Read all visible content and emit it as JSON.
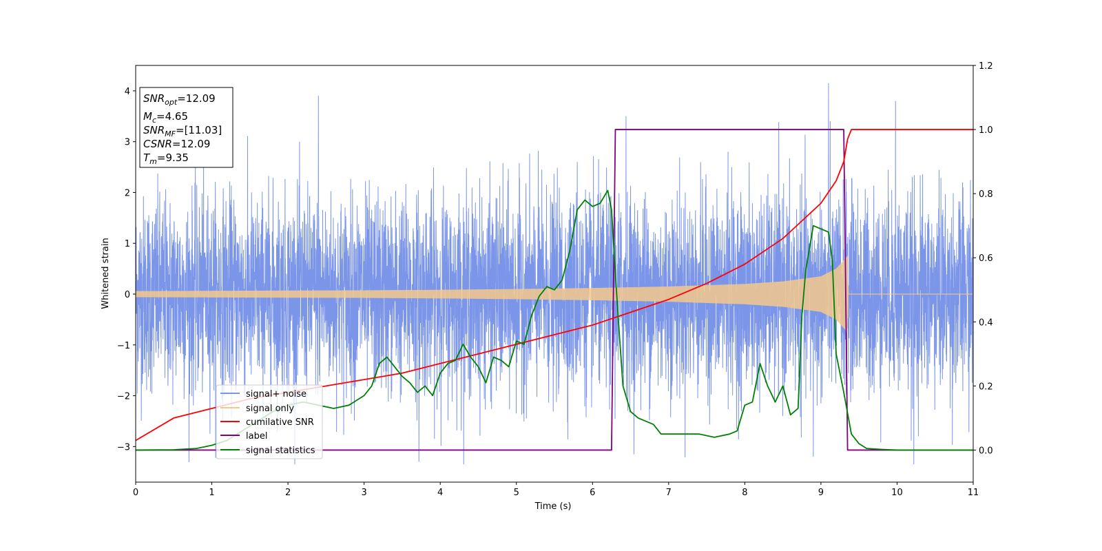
{
  "chart_data": {
    "type": "line",
    "xlabel": "Time (s)",
    "ylabel": "Whitened strain",
    "xlim": [
      0,
      11
    ],
    "ylim": [
      -3.7,
      4.5
    ],
    "y2lim": [
      -0.1,
      1.2
    ],
    "xticks": [
      "0",
      "1",
      "2",
      "3",
      "4",
      "5",
      "6",
      "7",
      "8",
      "9",
      "10",
      "11"
    ],
    "yticks": [
      -3,
      -2,
      -1,
      0,
      1,
      2,
      3,
      4
    ],
    "ytick_labels": [
      "−3",
      "−2",
      "−1",
      "0",
      "1",
      "2",
      "3",
      "4"
    ],
    "y2ticks": [
      "0.0",
      "0.2",
      "0.4",
      "0.6",
      "0.8",
      "1.0",
      "1.2"
    ],
    "grid": false,
    "legend_position": "lower-left",
    "annotations": {
      "snr_opt": {
        "sym": "SNR",
        "sub": "opt",
        "value": "=12.09"
      },
      "mc": {
        "sym": "M",
        "sub": "c",
        "value": "=4.65"
      },
      "snr_mf": {
        "sym": "SNR",
        "sub": "MF",
        "value": "=[11.03]"
      },
      "csnr": {
        "sym": "CSNR",
        "value": "=12.09"
      },
      "tm": {
        "sym": "T",
        "sub": "m",
        "value": "=9.35"
      }
    },
    "series": [
      {
        "name": "signal+ noise",
        "axis": "left",
        "color": "#7b95e8",
        "description_values": {
          "noise_sigma": 1.0,
          "typical_peak": 2.5,
          "max_peak": 4.15
        }
      },
      {
        "name": "signal only",
        "axis": "left",
        "color": "#f5c98c",
        "envelope_x": [
          0,
          1,
          2,
          3,
          4,
          5,
          6,
          7,
          8,
          8.5,
          9,
          9.2,
          9.35,
          9.36,
          11
        ],
        "envelope_y": [
          0.06,
          0.065,
          0.07,
          0.075,
          0.085,
          0.1,
          0.12,
          0.15,
          0.2,
          0.25,
          0.35,
          0.5,
          0.75,
          0.0,
          0.0
        ]
      },
      {
        "name": "cumilative SNR",
        "axis": "right",
        "color": "#ff0000",
        "x": [
          0,
          0.5,
          1,
          1.5,
          2,
          2.5,
          3,
          3.5,
          4,
          4.5,
          5,
          5.5,
          6,
          6.5,
          7,
          7.5,
          8,
          8.5,
          9,
          9.2,
          9.3,
          9.35,
          9.4,
          11
        ],
        "y": [
          0.03,
          0.1,
          0.13,
          0.16,
          0.18,
          0.2,
          0.22,
          0.24,
          0.27,
          0.3,
          0.33,
          0.36,
          0.39,
          0.43,
          0.47,
          0.52,
          0.58,
          0.66,
          0.77,
          0.84,
          0.9,
          0.97,
          1.0,
          1.0
        ]
      },
      {
        "name": "label",
        "axis": "right",
        "color": "#800080",
        "x": [
          0,
          6.25,
          6.3,
          9.3,
          9.35,
          11
        ],
        "y": [
          0,
          0,
          1,
          1,
          0,
          0
        ]
      },
      {
        "name": "signal statistics",
        "axis": "right",
        "color": "#008000",
        "x": [
          0,
          0.5,
          0.8,
          1.0,
          1.2,
          1.4,
          1.6,
          1.8,
          2.0,
          2.2,
          2.4,
          2.6,
          2.8,
          3.0,
          3.1,
          3.2,
          3.3,
          3.4,
          3.5,
          3.6,
          3.7,
          3.8,
          3.9,
          4.0,
          4.1,
          4.2,
          4.3,
          4.4,
          4.5,
          4.6,
          4.7,
          4.8,
          4.9,
          5.0,
          5.1,
          5.2,
          5.3,
          5.4,
          5.5,
          5.6,
          5.7,
          5.8,
          5.9,
          6.0,
          6.1,
          6.2,
          6.25,
          6.3,
          6.35,
          6.4,
          6.5,
          6.6,
          6.7,
          6.8,
          6.9,
          7.0,
          7.2,
          7.4,
          7.6,
          7.8,
          7.9,
          8.0,
          8.1,
          8.2,
          8.3,
          8.4,
          8.5,
          8.6,
          8.7,
          8.75,
          8.8,
          8.9,
          9.0,
          9.1,
          9.15,
          9.2,
          9.3,
          9.4,
          9.5,
          9.6,
          9.8,
          10.0,
          11.0
        ],
        "y": [
          0,
          0.001,
          0.005,
          0.015,
          0.03,
          0.06,
          0.09,
          0.12,
          0.14,
          0.15,
          0.14,
          0.13,
          0.14,
          0.17,
          0.2,
          0.27,
          0.29,
          0.26,
          0.23,
          0.21,
          0.18,
          0.2,
          0.17,
          0.24,
          0.27,
          0.28,
          0.33,
          0.29,
          0.26,
          0.21,
          0.29,
          0.28,
          0.26,
          0.34,
          0.33,
          0.42,
          0.48,
          0.51,
          0.5,
          0.53,
          0.62,
          0.75,
          0.78,
          0.76,
          0.77,
          0.81,
          0.75,
          0.55,
          0.37,
          0.2,
          0.12,
          0.1,
          0.09,
          0.08,
          0.05,
          0.05,
          0.05,
          0.05,
          0.04,
          0.05,
          0.06,
          0.14,
          0.15,
          0.27,
          0.2,
          0.15,
          0.2,
          0.11,
          0.13,
          0.42,
          0.56,
          0.7,
          0.69,
          0.68,
          0.59,
          0.3,
          0.18,
          0.05,
          0.02,
          0.005,
          0.002,
          0.0,
          0.0
        ]
      }
    ]
  }
}
